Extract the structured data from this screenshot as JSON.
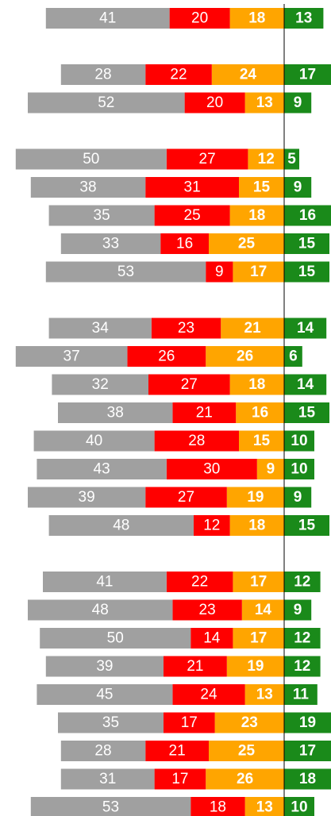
{
  "chart_data": {
    "type": "diverging_stacked_bar",
    "categories": [
      null,
      null,
      null,
      null,
      null,
      null,
      null,
      null,
      null,
      null,
      null,
      null,
      null,
      null,
      null,
      null,
      null,
      null,
      null,
      null,
      null,
      null,
      null,
      null,
      null,
      null,
      null,
      null,
      null
    ],
    "series": [
      {
        "color": "#a0a0a0",
        "values": [
          41,
          null,
          28,
          52,
          null,
          50,
          38,
          35,
          33,
          53,
          null,
          34,
          37,
          32,
          38,
          40,
          43,
          39,
          48,
          null,
          41,
          48,
          50,
          39,
          45,
          35,
          28,
          31,
          53
        ]
      },
      {
        "color": "#ff0000",
        "values": [
          20,
          null,
          22,
          20,
          null,
          27,
          31,
          25,
          16,
          9,
          null,
          23,
          26,
          27,
          21,
          28,
          30,
          27,
          12,
          null,
          22,
          23,
          14,
          21,
          24,
          17,
          21,
          17,
          18
        ]
      },
      {
        "color": "#ffa500",
        "values": [
          18,
          null,
          24,
          13,
          null,
          12,
          15,
          18,
          25,
          17,
          null,
          21,
          26,
          18,
          16,
          15,
          9,
          19,
          18,
          null,
          17,
          14,
          17,
          19,
          13,
          23,
          25,
          26,
          13
        ]
      },
      {
        "color": "#1a8a1a",
        "values": [
          13,
          null,
          17,
          9,
          null,
          5,
          9,
          16,
          15,
          15,
          null,
          14,
          6,
          14,
          15,
          10,
          10,
          9,
          15,
          null,
          12,
          9,
          12,
          12,
          11,
          19,
          17,
          18,
          10
        ]
      }
    ]
  }
}
